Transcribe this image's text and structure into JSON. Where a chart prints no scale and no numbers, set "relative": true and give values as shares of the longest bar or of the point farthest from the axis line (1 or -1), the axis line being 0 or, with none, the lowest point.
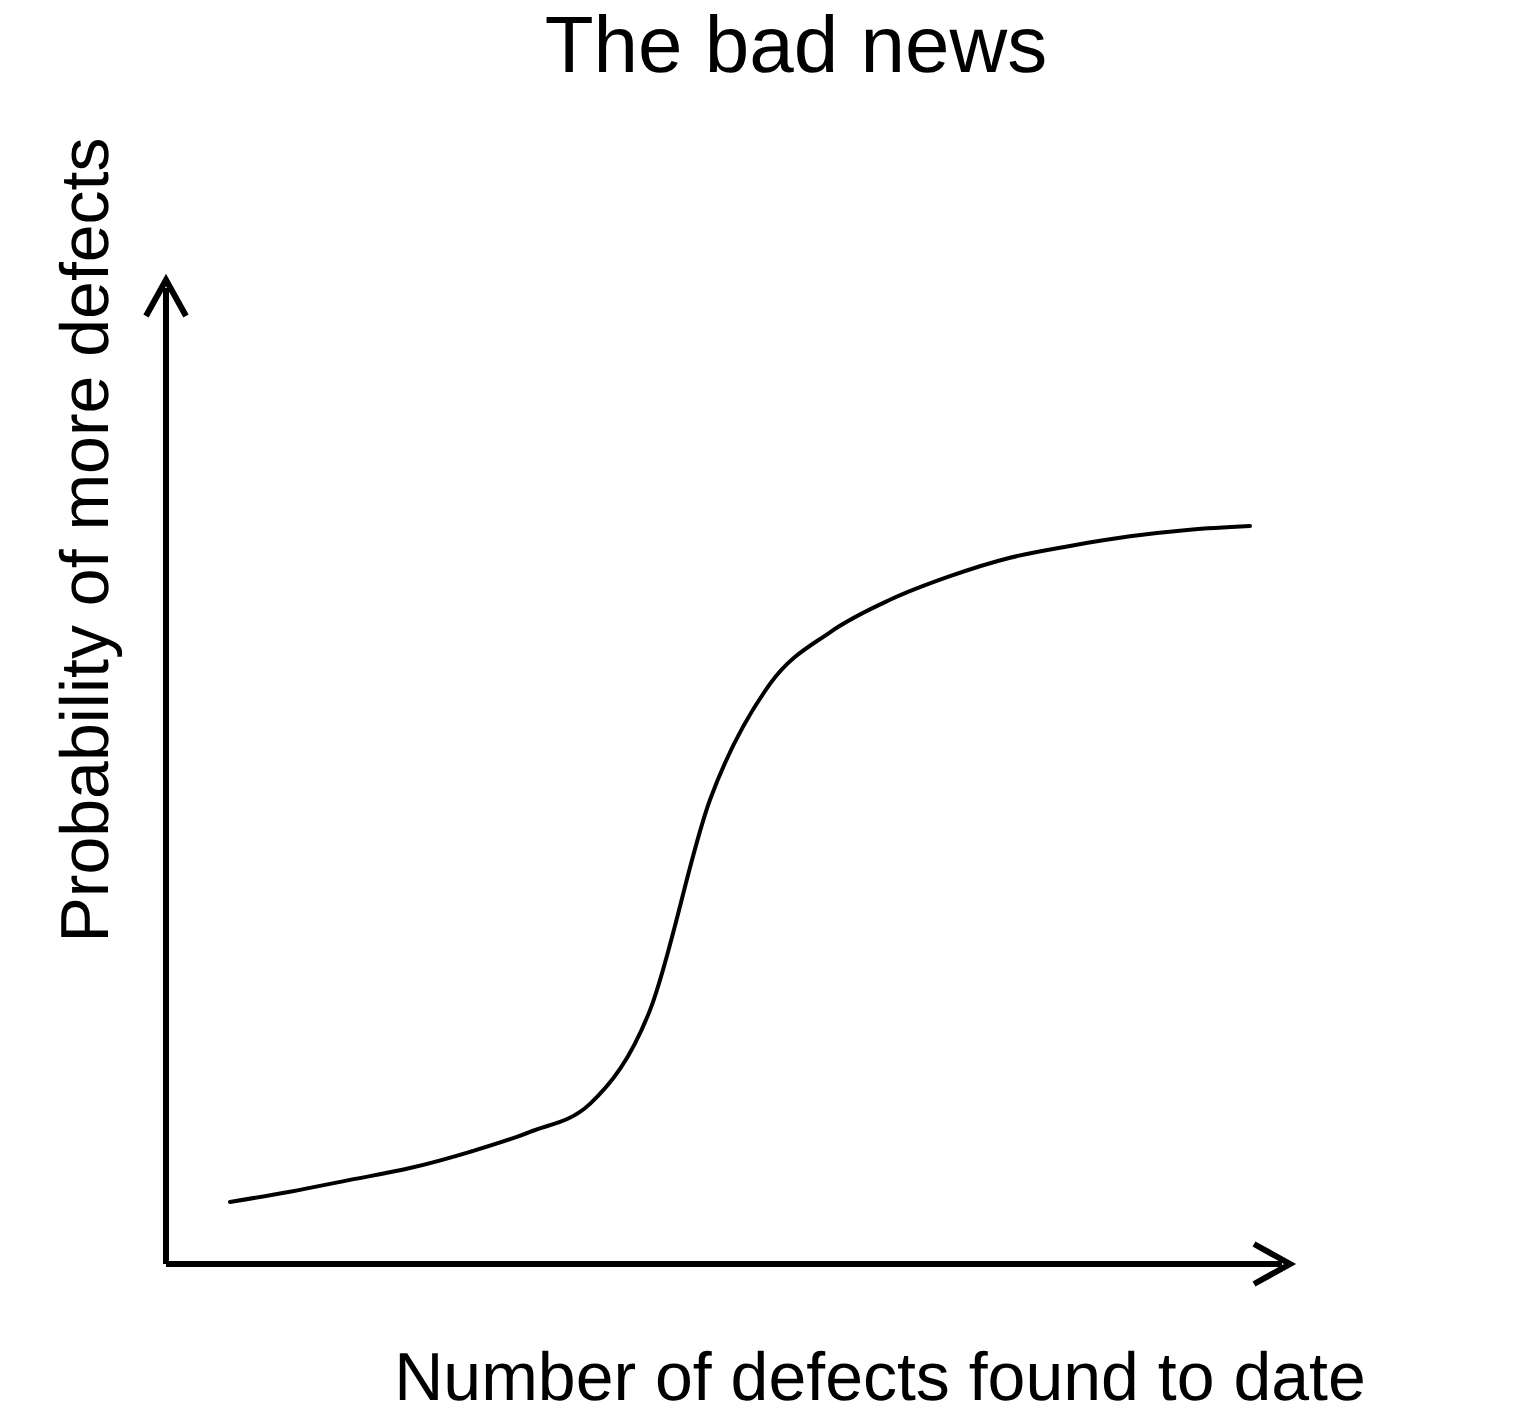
{
  "chart_data": {
    "type": "line",
    "title": "The bad news",
    "xlabel": "Number of defects found to date",
    "ylabel": "Probability of more defects",
    "relative": true,
    "color": "#000000",
    "categories": [
      null,
      null,
      null,
      null,
      null,
      null,
      null,
      null,
      null,
      null,
      null,
      null,
      null,
      null,
      null,
      null,
      null,
      null
    ],
    "values": [
      0.084,
      0.098,
      0.114,
      0.13,
      0.152,
      0.179,
      0.217,
      0.344,
      0.629,
      0.786,
      0.856,
      0.9,
      0.932,
      0.957,
      0.973,
      0.986,
      0.995,
      1
    ]
  }
}
